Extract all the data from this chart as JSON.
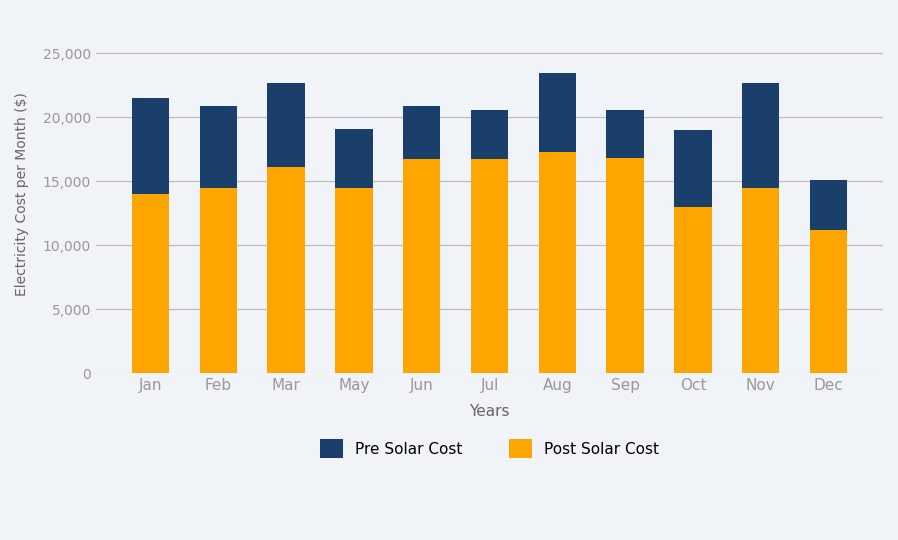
{
  "months": [
    "Jan",
    "Feb",
    "Mar",
    "May",
    "Jun",
    "Jul",
    "Aug",
    "Sep",
    "Oct",
    "Nov",
    "Dec"
  ],
  "post_solar": [
    14000,
    14500,
    16100,
    14500,
    16700,
    16700,
    17300,
    16800,
    13000,
    14500,
    11200
  ],
  "pre_solar_extra": [
    7500,
    6400,
    6600,
    4600,
    4200,
    3900,
    6200,
    3800,
    6000,
    8200,
    3900
  ],
  "post_solar_color": "#FFA500",
  "pre_solar_color": "#1B3F6B",
  "ylabel": "Electricity Cost per Month ($)",
  "xlabel": "Years",
  "legend_pre": "Pre Solar Cost",
  "legend_post": "Post Solar Cost",
  "ylim": [
    0,
    28000
  ],
  "yticks": [
    0,
    5000,
    10000,
    15000,
    20000,
    25000
  ],
  "background_color": "#F0F3F7",
  "plot_bg_color": "#F0F3F7",
  "grid_color": "#BBBBBB",
  "tick_color": "#999999",
  "label_color": "#666666",
  "bar_width": 0.55
}
